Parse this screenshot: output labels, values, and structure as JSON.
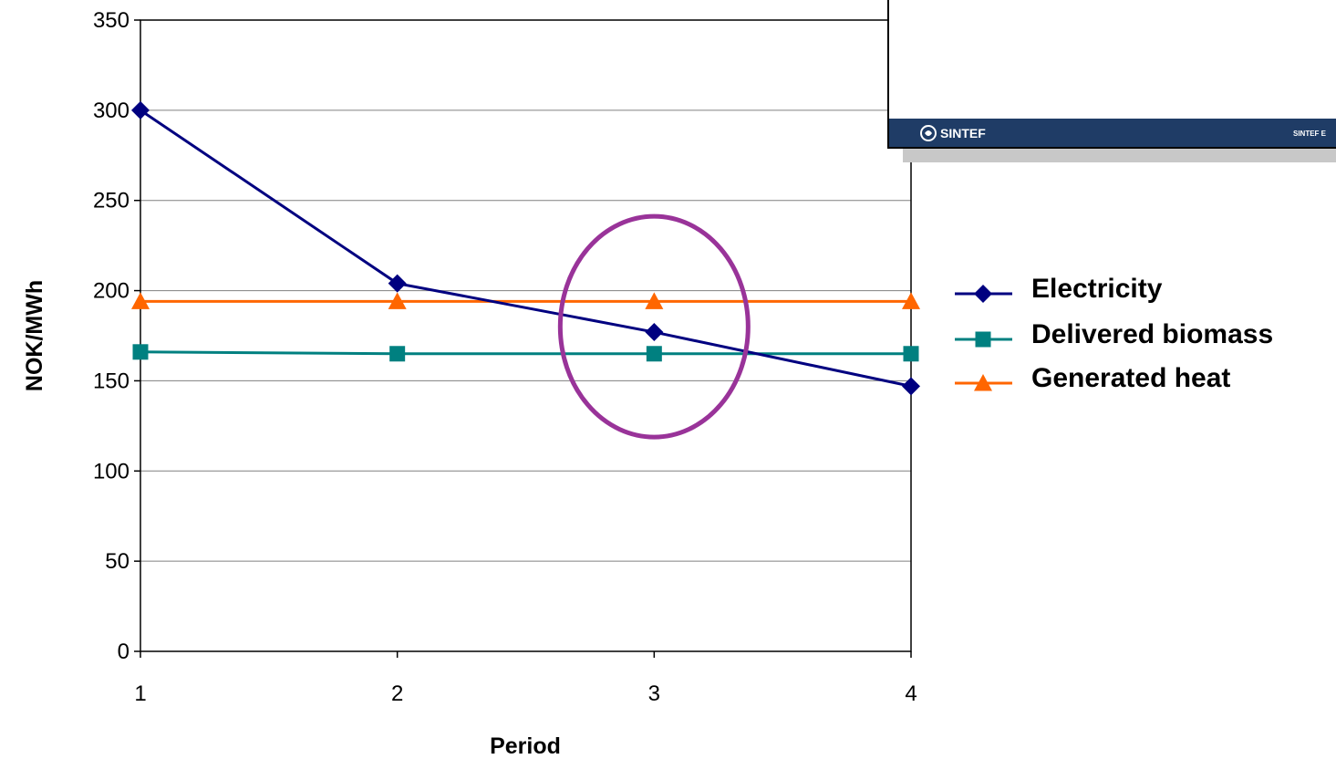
{
  "chart_data": {
    "type": "line",
    "x": [
      1,
      2,
      3,
      4
    ],
    "xlabel": "Period",
    "ylabel": "NOK/MWh",
    "ylim": [
      0,
      350
    ],
    "yticks": [
      0,
      50,
      100,
      150,
      200,
      250,
      300,
      350
    ],
    "grid": true,
    "legend_position": "right",
    "series": [
      {
        "name": "Electricity",
        "values": [
          300,
          204,
          177,
          147
        ],
        "color": "#000080",
        "marker": "diamond"
      },
      {
        "name": "Delivered biomass",
        "values": [
          166,
          165,
          165,
          165
        ],
        "color": "#008080",
        "marker": "square"
      },
      {
        "name": "Generated heat",
        "values": [
          194,
          194,
          194,
          194
        ],
        "color": "#FF6600",
        "marker": "triangle"
      }
    ],
    "highlight": {
      "shape": "ellipse",
      "x": 3,
      "color": "#993399"
    }
  },
  "overlay": {
    "logo_label": "SINTEF",
    "footer_text": "SINTEF E",
    "logo_icon": "sintef-logo-icon"
  }
}
